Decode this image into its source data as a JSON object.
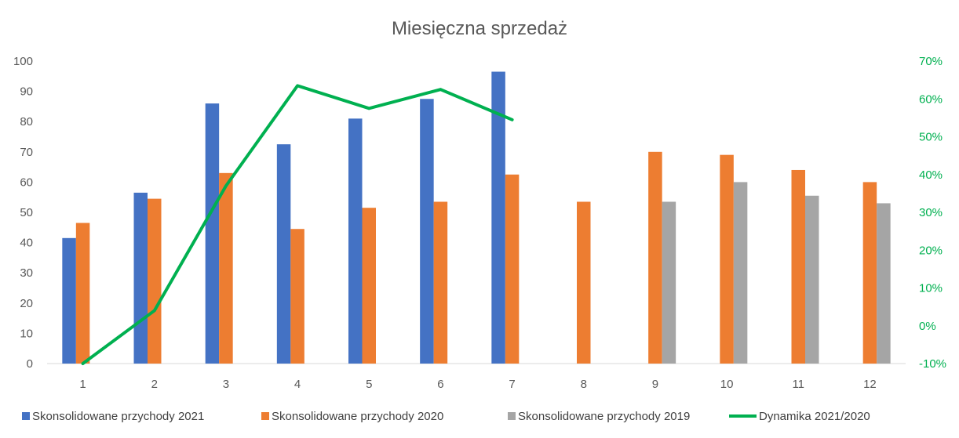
{
  "chart_data": {
    "type": "bar",
    "title": "Miesięczna sprzedaż",
    "categories": [
      "1",
      "2",
      "3",
      "4",
      "5",
      "6",
      "7",
      "8",
      "9",
      "10",
      "11",
      "12"
    ],
    "series": [
      {
        "name": "Skonsolidowane przychody 2021",
        "kind": "bar",
        "color": "#4472C4",
        "values": [
          41.5,
          56.5,
          86,
          72.5,
          81,
          87.5,
          96.5,
          null,
          null,
          null,
          null,
          null
        ]
      },
      {
        "name": "Skonsolidowane przychody 2020",
        "kind": "bar",
        "color": "#ED7D31",
        "values": [
          46.5,
          54.5,
          63,
          44.5,
          51.5,
          53.5,
          62.5,
          53.5,
          70,
          69,
          64,
          60
        ]
      },
      {
        "name": "Skonsolidowane przychody 2019",
        "kind": "bar",
        "color": "#A5A5A5",
        "values": [
          null,
          null,
          null,
          null,
          null,
          null,
          null,
          null,
          53.5,
          60,
          55.5,
          53
        ]
      },
      {
        "name": "Dynamika 2021/2020",
        "kind": "line",
        "axis": "right",
        "color": "#00B050",
        "values": [
          -10,
          4,
          37,
          63.5,
          57.5,
          62.5,
          54.5,
          null,
          null,
          null,
          null,
          null
        ]
      }
    ],
    "left_axis": {
      "min": 0,
      "max": 100,
      "step": 10,
      "ticks": [
        "0",
        "10",
        "20",
        "30",
        "40",
        "50",
        "60",
        "70",
        "80",
        "90",
        "100"
      ]
    },
    "right_axis": {
      "min": -10,
      "max": 70,
      "step": 10,
      "ticks": [
        "-10%",
        "0%",
        "10%",
        "20%",
        "30%",
        "40%",
        "50%",
        "60%",
        "70%"
      ]
    },
    "grid": false,
    "legend_position": "bottom"
  }
}
